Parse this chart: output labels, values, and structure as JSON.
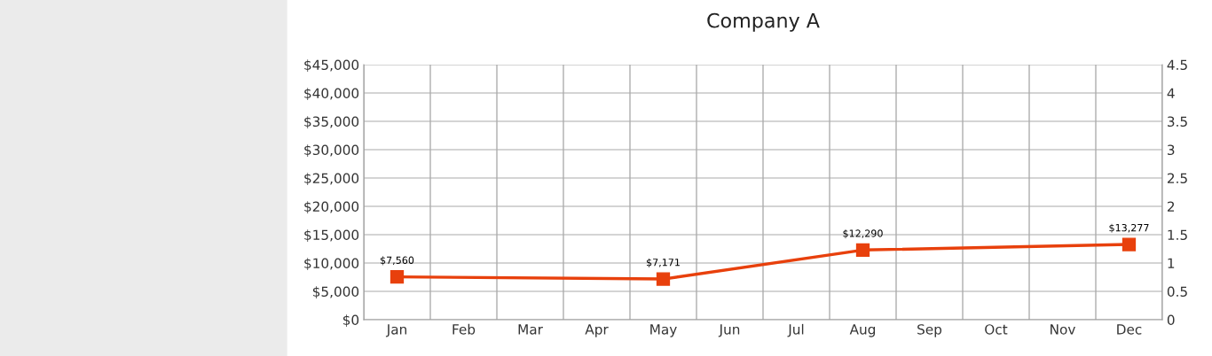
{
  "chart_data": {
    "type": "line",
    "title": "Company A",
    "categories": [
      "Jan",
      "Feb",
      "Mar",
      "Apr",
      "May",
      "Jun",
      "Jul",
      "Aug",
      "Sep",
      "Oct",
      "Nov",
      "Dec"
    ],
    "series": [
      {
        "color": "#e8400c",
        "values": [
          7560,
          null,
          null,
          null,
          7171,
          null,
          null,
          12290,
          null,
          null,
          null,
          13277
        ]
      }
    ],
    "ylim": [
      0,
      45000
    ],
    "yticks": [
      {
        "value": 0,
        "label": "$0"
      },
      {
        "value": 5000,
        "label": "$5,000"
      },
      {
        "value": 10000,
        "label": "$10,000"
      },
      {
        "value": 15000,
        "label": "$15,000"
      },
      {
        "value": 20000,
        "label": "$20,000"
      },
      {
        "value": 25000,
        "label": "$25,000"
      },
      {
        "value": 30000,
        "label": "$30,000"
      },
      {
        "value": 35000,
        "label": "$35,000"
      },
      {
        "value": 40000,
        "label": "$40,000"
      },
      {
        "value": 45000,
        "label": "$45,000"
      }
    ],
    "y2lim": [
      0,
      4.5
    ],
    "y2ticks": [
      0,
      0.5,
      1,
      1.5,
      2,
      2.5,
      3,
      3.5,
      4,
      4.5
    ],
    "value_labels": [
      "$7,560",
      null,
      null,
      null,
      "$7,171",
      null,
      null,
      "$12,290",
      null,
      null,
      null,
      "$13,277"
    ],
    "grid": true,
    "marker": "square",
    "line_style": "solid"
  }
}
